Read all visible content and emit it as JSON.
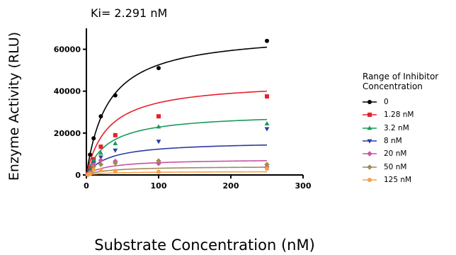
{
  "chart_data": {
    "type": "scatter",
    "subtitle": "Ki= 2.291 nM",
    "xlabel": "Substrate Concentration (nM)",
    "ylabel": "Enzyme Activity (RLU)",
    "xlim": [
      0,
      300
    ],
    "ylim": [
      0,
      70000
    ],
    "x_ticks": [
      0,
      100,
      200,
      300
    ],
    "y_ticks": [
      0,
      20000,
      40000,
      60000
    ],
    "grid": false,
    "legend_title": "Range of Inhibitor Concentration",
    "legend_position": "right",
    "x": [
      2,
      5,
      10,
      20,
      40,
      100,
      250
    ],
    "series": [
      {
        "name": "0",
        "color": "#000000",
        "marker": "circle",
        "values": [
          1000,
          9700,
          17500,
          28000,
          38000,
          51000,
          64000
        ],
        "fit_x": [
          0,
          250
        ],
        "fit_y": [
          0,
          61000
        ]
      },
      {
        "name": "1.28 nM",
        "color": "#e8202a",
        "marker": "square",
        "values": [
          600,
          3500,
          7500,
          13500,
          19000,
          28000,
          37500
        ],
        "fit_x": [
          0,
          250
        ],
        "fit_y": [
          0,
          40000
        ]
      },
      {
        "name": "3.2 nM",
        "color": "#1a9a5a",
        "marker": "triangle-up",
        "values": [
          500,
          3000,
          7000,
          10500,
          15000,
          23000,
          24500
        ],
        "fit_x": [
          0,
          250
        ],
        "fit_y": [
          0,
          26500
        ]
      },
      {
        "name": "8 nM",
        "color": "#2e3aa0",
        "marker": "triangle-down",
        "values": [
          300,
          2000,
          5500,
          8500,
          11800,
          16000,
          22000
        ],
        "fit_x": [
          0,
          250
        ],
        "fit_y": [
          0,
          14300
        ]
      },
      {
        "name": "20 nM",
        "color": "#c8539e",
        "marker": "diamond",
        "values": [
          200,
          1500,
          5000,
          7000,
          6500,
          5500,
          3800
        ],
        "fit_x": [
          0,
          250
        ],
        "fit_y": [
          0,
          6800
        ]
      },
      {
        "name": "50 nM",
        "color": "#a08a5a",
        "marker": "diamond",
        "values": [
          150,
          1000,
          4000,
          5000,
          5700,
          6700,
          5000
        ],
        "fit_x": [
          0,
          250
        ],
        "fit_y": [
          0,
          3700
        ]
      },
      {
        "name": "125 nM",
        "color": "#f5a04a",
        "marker": "circle",
        "values": [
          100,
          500,
          2500,
          2200,
          2000,
          1500,
          3000
        ],
        "fit_x": [
          0,
          250
        ],
        "fit_y": [
          0,
          1500
        ]
      }
    ]
  }
}
